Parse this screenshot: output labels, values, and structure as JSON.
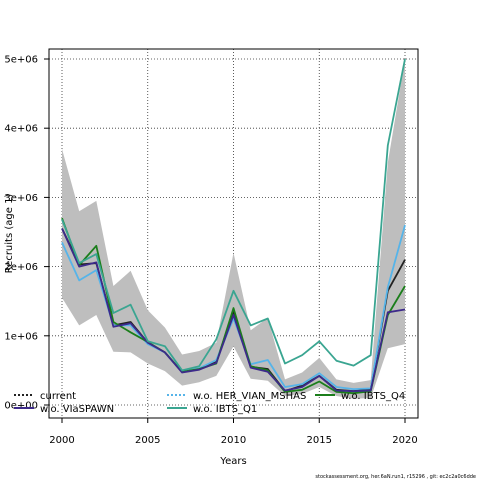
{
  "chart_data": {
    "type": "line",
    "title": "",
    "xlabel": "Years",
    "ylabel": "Recruits (age 1)",
    "xlim": [
      2000,
      2020
    ],
    "ylim": [
      0,
      5000000
    ],
    "x_ticks": [
      2000,
      2005,
      2010,
      2015,
      2020
    ],
    "x_tick_labels": [
      "2000",
      "2005",
      "2010",
      "2015",
      "2020"
    ],
    "y_ticks": [
      0,
      1000000,
      2000000,
      3000000,
      4000000,
      5000000
    ],
    "y_tick_labels": [
      "0e+00",
      "1e+06",
      "2e+06",
      "3e+06",
      "4e+06",
      "5e+06"
    ],
    "grid": true,
    "x": [
      2000,
      2001,
      2002,
      2003,
      2004,
      2005,
      2006,
      2007,
      2008,
      2009,
      2010,
      2011,
      2012,
      2013,
      2014,
      2015,
      2016,
      2017,
      2018,
      2019,
      2020
    ],
    "band": {
      "color": "#bebebe",
      "lower": [
        1550000,
        1150000,
        1300000,
        770000,
        760000,
        600000,
        490000,
        280000,
        330000,
        420000,
        850000,
        380000,
        350000,
        130000,
        160000,
        260000,
        130000,
        90000,
        100000,
        820000,
        880000
      ],
      "upper": [
        3700000,
        2800000,
        2950000,
        1720000,
        1940000,
        1370000,
        1120000,
        730000,
        780000,
        900000,
        2200000,
        1080000,
        1260000,
        370000,
        470000,
        680000,
        370000,
        320000,
        360000,
        3500000,
        5000000
      ]
    },
    "series": [
      {
        "name": "current",
        "color": "#222222",
        "dash": "",
        "values": [
          2550000,
          2030000,
          2050000,
          1150000,
          1200000,
          900000,
          760000,
          480000,
          520000,
          620000,
          1350000,
          550000,
          520000,
          200000,
          280000,
          420000,
          220000,
          200000,
          230000,
          1650000,
          2100000
        ]
      },
      {
        "name": "w.o. HER_VIAN_MSHAS",
        "color": "#56B4E9",
        "dash": "",
        "values": [
          2350000,
          1800000,
          1950000,
          1150000,
          1150000,
          880000,
          760000,
          480000,
          530000,
          650000,
          1250000,
          590000,
          650000,
          260000,
          300000,
          460000,
          260000,
          230000,
          240000,
          1700000,
          2600000
        ]
      },
      {
        "name": "w.o. IBTS_Q4",
        "color": "#1b7e1b",
        "dash": "",
        "values": [
          2700000,
          2020000,
          2300000,
          1200000,
          1050000,
          910000,
          760000,
          480000,
          520000,
          600000,
          1400000,
          560000,
          500000,
          190000,
          220000,
          340000,
          190000,
          170000,
          200000,
          1300000,
          1720000
        ]
      },
      {
        "name": "w.o. VIaSPAWN",
        "color": "#3d2a8a",
        "dash": "",
        "values": [
          2550000,
          2000000,
          2060000,
          1130000,
          1180000,
          900000,
          760000,
          470000,
          510000,
          610000,
          1300000,
          540000,
          480000,
          210000,
          260000,
          420000,
          210000,
          200000,
          210000,
          1340000,
          1380000
        ]
      },
      {
        "name": "w.o. IBTS_Q1",
        "color": "#3aa591",
        "dash": "",
        "values": [
          2680000,
          2050000,
          2180000,
          1330000,
          1450000,
          920000,
          850000,
          500000,
          560000,
          950000,
          1650000,
          1150000,
          1250000,
          600000,
          720000,
          920000,
          640000,
          570000,
          720000,
          3750000,
          5000000
        ]
      }
    ],
    "legend": {
      "placement": "bottom",
      "entries": [
        {
          "label": "current",
          "color": "#222222",
          "style": "dotted"
        },
        {
          "label": "w.o. HER_VIAN_MSHAS",
          "color": "#56B4E9",
          "style": "dotted"
        },
        {
          "label": "w.o. IBTS_Q4",
          "color": "#1b7e1b",
          "style": "solid"
        },
        {
          "label": "w.o. VIaSPAWN",
          "color": "#3d2a8a",
          "style": "solid"
        },
        {
          "label": "w.o. IBTS_Q1",
          "color": "#3aa591",
          "style": "solid"
        }
      ]
    }
  },
  "footnote": "stockassessment.org, her.6aN.run1, r15296 , git: ec2c2a0c6dde"
}
